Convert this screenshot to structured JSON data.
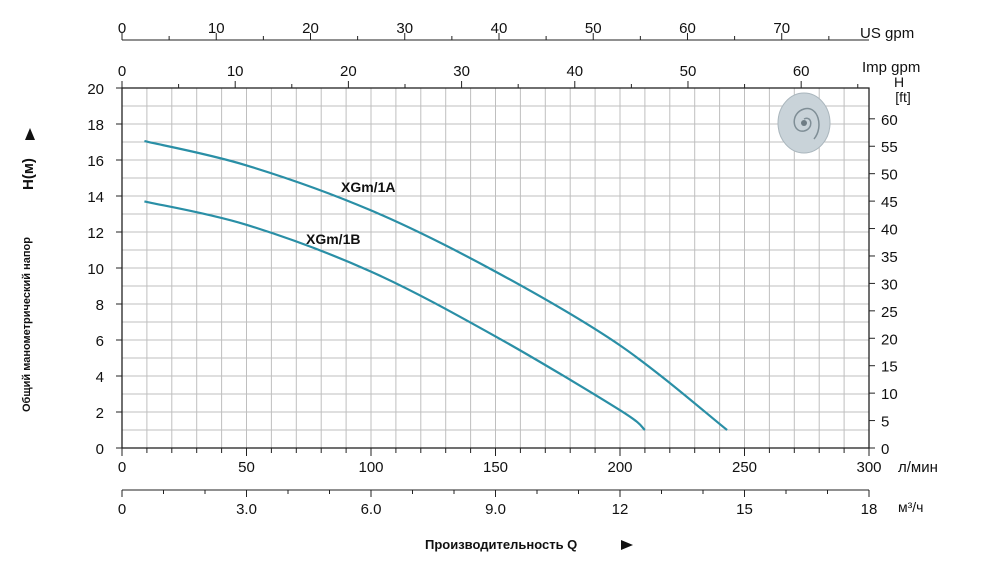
{
  "chart_data": {
    "type": "line",
    "title": "",
    "xlabel": "Производительность Q",
    "ylabel": "Общий манометрический напор",
    "ylabel_symbol": "H(м)",
    "xlim": [
      0,
      300
    ],
    "ylim": [
      0,
      20
    ],
    "grid": true,
    "x_unit": "л/мин",
    "x_ticks": [
      0,
      50,
      100,
      150,
      200,
      250,
      300
    ],
    "y_ticks": [
      0,
      2,
      4,
      6,
      8,
      10,
      12,
      14,
      16,
      18,
      20
    ],
    "secondary_axes": {
      "us_gpm": {
        "label": "US gpm",
        "ticks": [
          0,
          10,
          20,
          30,
          40,
          50,
          60,
          70
        ]
      },
      "imp_gpm": {
        "label": "Imp gpm",
        "ticks": [
          0,
          10,
          20,
          30,
          40,
          50,
          60
        ]
      },
      "m3h": {
        "label": "м³/ч",
        "ticks": [
          "0",
          "3.0",
          "6.0",
          "9.0",
          "12",
          "15",
          "18"
        ]
      },
      "ft": {
        "label_top": "H",
        "label_bottom": "[ft]",
        "ticks": [
          0,
          5,
          10,
          15,
          20,
          25,
          30,
          35,
          40,
          45,
          50,
          55,
          60
        ]
      }
    },
    "series": [
      {
        "name": "XGm/1A",
        "color": "#2a8fa6",
        "x": [
          9,
          50,
          100,
          150,
          200,
          243
        ],
        "y": [
          17.05,
          15.7,
          13.2,
          9.8,
          5.7,
          1.0
        ]
      },
      {
        "name": "XGm/1B",
        "color": "#2a8fa6",
        "x": [
          9,
          50,
          100,
          150,
          200,
          210
        ],
        "y": [
          13.7,
          12.4,
          9.8,
          6.2,
          2.1,
          1.0
        ]
      }
    ]
  }
}
